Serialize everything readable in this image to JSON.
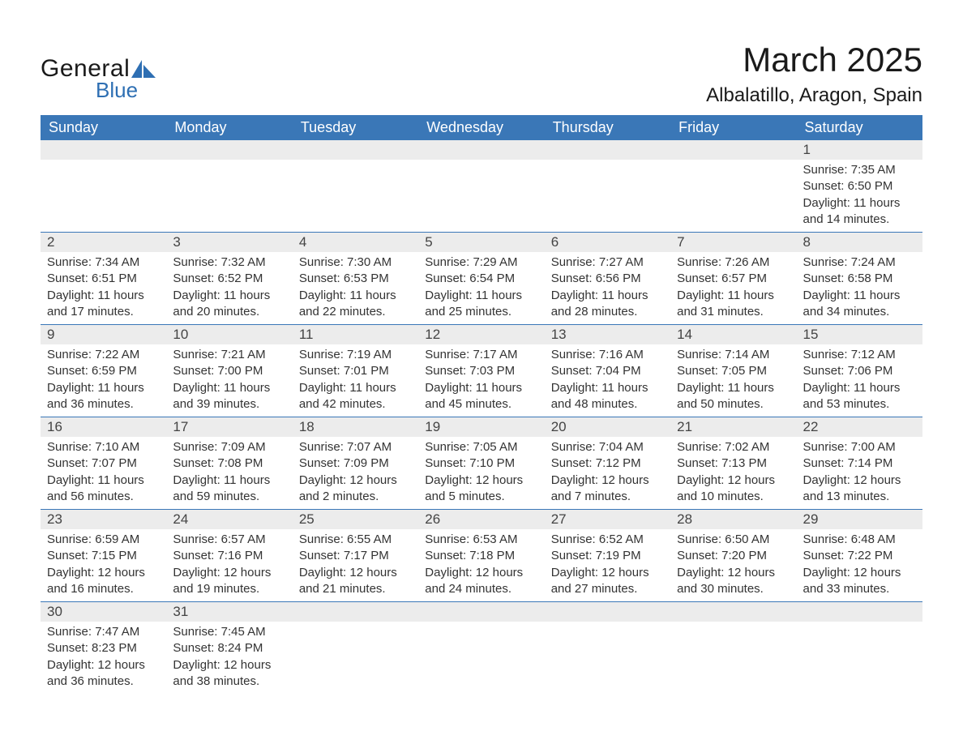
{
  "brand": {
    "word1": "General",
    "word2": "Blue",
    "accent": "#2e6fb3"
  },
  "title": "March 2025",
  "location": "Albalatillo, Aragon, Spain",
  "colors": {
    "header_bg": "#3a77b7",
    "header_text": "#ffffff",
    "daynum_bg": "#ececec",
    "row_divider": "#3a77b7",
    "body_text": "#333333",
    "page_bg": "#ffffff"
  },
  "typography": {
    "title_fontsize": 42,
    "location_fontsize": 24,
    "header_fontsize": 18,
    "daynum_fontsize": 17,
    "body_fontsize": 15
  },
  "weekdays": [
    "Sunday",
    "Monday",
    "Tuesday",
    "Wednesday",
    "Thursday",
    "Friday",
    "Saturday"
  ],
  "weeks": [
    [
      {
        "n": "",
        "sr": "",
        "ss": "",
        "d1": "",
        "d2": ""
      },
      {
        "n": "",
        "sr": "",
        "ss": "",
        "d1": "",
        "d2": ""
      },
      {
        "n": "",
        "sr": "",
        "ss": "",
        "d1": "",
        "d2": ""
      },
      {
        "n": "",
        "sr": "",
        "ss": "",
        "d1": "",
        "d2": ""
      },
      {
        "n": "",
        "sr": "",
        "ss": "",
        "d1": "",
        "d2": ""
      },
      {
        "n": "",
        "sr": "",
        "ss": "",
        "d1": "",
        "d2": ""
      },
      {
        "n": "1",
        "sr": "Sunrise: 7:35 AM",
        "ss": "Sunset: 6:50 PM",
        "d1": "Daylight: 11 hours",
        "d2": "and 14 minutes."
      }
    ],
    [
      {
        "n": "2",
        "sr": "Sunrise: 7:34 AM",
        "ss": "Sunset: 6:51 PM",
        "d1": "Daylight: 11 hours",
        "d2": "and 17 minutes."
      },
      {
        "n": "3",
        "sr": "Sunrise: 7:32 AM",
        "ss": "Sunset: 6:52 PM",
        "d1": "Daylight: 11 hours",
        "d2": "and 20 minutes."
      },
      {
        "n": "4",
        "sr": "Sunrise: 7:30 AM",
        "ss": "Sunset: 6:53 PM",
        "d1": "Daylight: 11 hours",
        "d2": "and 22 minutes."
      },
      {
        "n": "5",
        "sr": "Sunrise: 7:29 AM",
        "ss": "Sunset: 6:54 PM",
        "d1": "Daylight: 11 hours",
        "d2": "and 25 minutes."
      },
      {
        "n": "6",
        "sr": "Sunrise: 7:27 AM",
        "ss": "Sunset: 6:56 PM",
        "d1": "Daylight: 11 hours",
        "d2": "and 28 minutes."
      },
      {
        "n": "7",
        "sr": "Sunrise: 7:26 AM",
        "ss": "Sunset: 6:57 PM",
        "d1": "Daylight: 11 hours",
        "d2": "and 31 minutes."
      },
      {
        "n": "8",
        "sr": "Sunrise: 7:24 AM",
        "ss": "Sunset: 6:58 PM",
        "d1": "Daylight: 11 hours",
        "d2": "and 34 minutes."
      }
    ],
    [
      {
        "n": "9",
        "sr": "Sunrise: 7:22 AM",
        "ss": "Sunset: 6:59 PM",
        "d1": "Daylight: 11 hours",
        "d2": "and 36 minutes."
      },
      {
        "n": "10",
        "sr": "Sunrise: 7:21 AM",
        "ss": "Sunset: 7:00 PM",
        "d1": "Daylight: 11 hours",
        "d2": "and 39 minutes."
      },
      {
        "n": "11",
        "sr": "Sunrise: 7:19 AM",
        "ss": "Sunset: 7:01 PM",
        "d1": "Daylight: 11 hours",
        "d2": "and 42 minutes."
      },
      {
        "n": "12",
        "sr": "Sunrise: 7:17 AM",
        "ss": "Sunset: 7:03 PM",
        "d1": "Daylight: 11 hours",
        "d2": "and 45 minutes."
      },
      {
        "n": "13",
        "sr": "Sunrise: 7:16 AM",
        "ss": "Sunset: 7:04 PM",
        "d1": "Daylight: 11 hours",
        "d2": "and 48 minutes."
      },
      {
        "n": "14",
        "sr": "Sunrise: 7:14 AM",
        "ss": "Sunset: 7:05 PM",
        "d1": "Daylight: 11 hours",
        "d2": "and 50 minutes."
      },
      {
        "n": "15",
        "sr": "Sunrise: 7:12 AM",
        "ss": "Sunset: 7:06 PM",
        "d1": "Daylight: 11 hours",
        "d2": "and 53 minutes."
      }
    ],
    [
      {
        "n": "16",
        "sr": "Sunrise: 7:10 AM",
        "ss": "Sunset: 7:07 PM",
        "d1": "Daylight: 11 hours",
        "d2": "and 56 minutes."
      },
      {
        "n": "17",
        "sr": "Sunrise: 7:09 AM",
        "ss": "Sunset: 7:08 PM",
        "d1": "Daylight: 11 hours",
        "d2": "and 59 minutes."
      },
      {
        "n": "18",
        "sr": "Sunrise: 7:07 AM",
        "ss": "Sunset: 7:09 PM",
        "d1": "Daylight: 12 hours",
        "d2": "and 2 minutes."
      },
      {
        "n": "19",
        "sr": "Sunrise: 7:05 AM",
        "ss": "Sunset: 7:10 PM",
        "d1": "Daylight: 12 hours",
        "d2": "and 5 minutes."
      },
      {
        "n": "20",
        "sr": "Sunrise: 7:04 AM",
        "ss": "Sunset: 7:12 PM",
        "d1": "Daylight: 12 hours",
        "d2": "and 7 minutes."
      },
      {
        "n": "21",
        "sr": "Sunrise: 7:02 AM",
        "ss": "Sunset: 7:13 PM",
        "d1": "Daylight: 12 hours",
        "d2": "and 10 minutes."
      },
      {
        "n": "22",
        "sr": "Sunrise: 7:00 AM",
        "ss": "Sunset: 7:14 PM",
        "d1": "Daylight: 12 hours",
        "d2": "and 13 minutes."
      }
    ],
    [
      {
        "n": "23",
        "sr": "Sunrise: 6:59 AM",
        "ss": "Sunset: 7:15 PM",
        "d1": "Daylight: 12 hours",
        "d2": "and 16 minutes."
      },
      {
        "n": "24",
        "sr": "Sunrise: 6:57 AM",
        "ss": "Sunset: 7:16 PM",
        "d1": "Daylight: 12 hours",
        "d2": "and 19 minutes."
      },
      {
        "n": "25",
        "sr": "Sunrise: 6:55 AM",
        "ss": "Sunset: 7:17 PM",
        "d1": "Daylight: 12 hours",
        "d2": "and 21 minutes."
      },
      {
        "n": "26",
        "sr": "Sunrise: 6:53 AM",
        "ss": "Sunset: 7:18 PM",
        "d1": "Daylight: 12 hours",
        "d2": "and 24 minutes."
      },
      {
        "n": "27",
        "sr": "Sunrise: 6:52 AM",
        "ss": "Sunset: 7:19 PM",
        "d1": "Daylight: 12 hours",
        "d2": "and 27 minutes."
      },
      {
        "n": "28",
        "sr": "Sunrise: 6:50 AM",
        "ss": "Sunset: 7:20 PM",
        "d1": "Daylight: 12 hours",
        "d2": "and 30 minutes."
      },
      {
        "n": "29",
        "sr": "Sunrise: 6:48 AM",
        "ss": "Sunset: 7:22 PM",
        "d1": "Daylight: 12 hours",
        "d2": "and 33 minutes."
      }
    ],
    [
      {
        "n": "30",
        "sr": "Sunrise: 7:47 AM",
        "ss": "Sunset: 8:23 PM",
        "d1": "Daylight: 12 hours",
        "d2": "and 36 minutes."
      },
      {
        "n": "31",
        "sr": "Sunrise: 7:45 AM",
        "ss": "Sunset: 8:24 PM",
        "d1": "Daylight: 12 hours",
        "d2": "and 38 minutes."
      },
      {
        "n": "",
        "sr": "",
        "ss": "",
        "d1": "",
        "d2": ""
      },
      {
        "n": "",
        "sr": "",
        "ss": "",
        "d1": "",
        "d2": ""
      },
      {
        "n": "",
        "sr": "",
        "ss": "",
        "d1": "",
        "d2": ""
      },
      {
        "n": "",
        "sr": "",
        "ss": "",
        "d1": "",
        "d2": ""
      },
      {
        "n": "",
        "sr": "",
        "ss": "",
        "d1": "",
        "d2": ""
      }
    ]
  ]
}
